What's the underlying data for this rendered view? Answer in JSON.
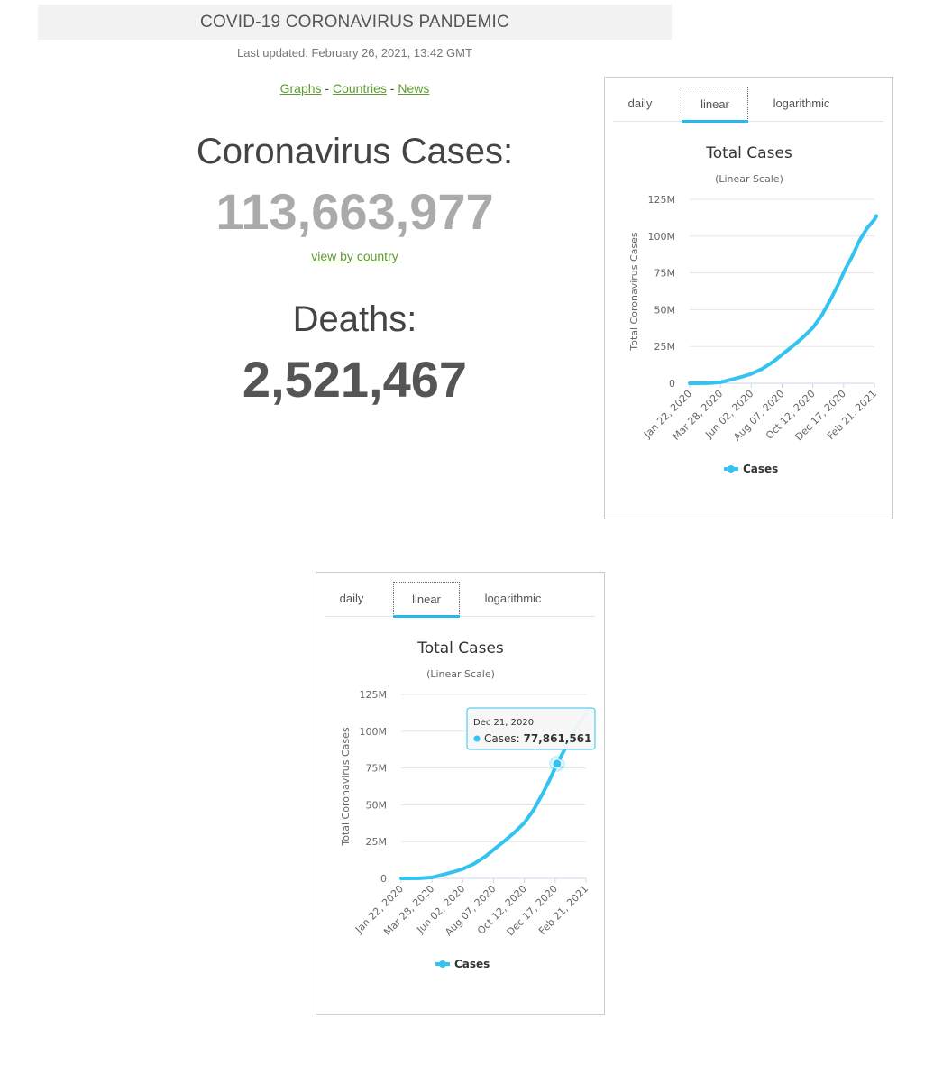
{
  "header": {
    "title": "COVID-19 CORONAVIRUS PANDEMIC",
    "last_updated": "Last updated: February 26, 2021, 13:42 GMT"
  },
  "nav": {
    "graphs": "Graphs",
    "sep1": " - ",
    "countries": "Countries",
    "sep2": " - ",
    "news": "News"
  },
  "stats": {
    "cases_label": "Coronavirus Cases:",
    "cases_value": "113,663,977",
    "view_link": "view by country",
    "deaths_label": "Deaths:",
    "deaths_value": "2,521,467"
  },
  "chart_tabs": {
    "daily": "daily",
    "linear": "linear",
    "logarithmic": "logarithmic"
  },
  "tooltip": {
    "date": "Dec 21, 2020",
    "series": "Cases",
    "value": "77,861,561"
  },
  "colors": {
    "series": "#33c3f0",
    "link": "#609b31"
  },
  "chart_data": {
    "type": "line",
    "title": "Total Cases",
    "subtitle": "(Linear Scale)",
    "ylabel": "Total Coronavirus Cases",
    "ylim": [
      0,
      125000000
    ],
    "yticks": [
      0,
      25000000,
      50000000,
      75000000,
      100000000,
      125000000
    ],
    "ytick_labels": [
      "0",
      "25M",
      "50M",
      "75M",
      "100M",
      "125M"
    ],
    "xtick_labels": [
      "Jan 22, 2020",
      "Mar 28, 2020",
      "Jun 02, 2020",
      "Aug 07, 2020",
      "Oct 12, 2020",
      "Dec 17, 2020",
      "Feb 21, 2021"
    ],
    "legend": "bottom-center",
    "grid": true,
    "series": [
      {
        "name": "Cases",
        "points": [
          [
            "Jan 22, 2020",
            0
          ],
          [
            "Mar 01, 2020",
            90000
          ],
          [
            "Mar 28, 2020",
            660000
          ],
          [
            "Apr 20, 2020",
            2500000
          ],
          [
            "May 15, 2020",
            4600000
          ],
          [
            "Jun 02, 2020",
            6400000
          ],
          [
            "Jun 25, 2020",
            9700000
          ],
          [
            "Jul 20, 2020",
            14800000
          ],
          [
            "Aug 07, 2020",
            19500000
          ],
          [
            "Aug 30, 2020",
            25300000
          ],
          [
            "Sep 20, 2020",
            31000000
          ],
          [
            "Oct 12, 2020",
            37800000
          ],
          [
            "Nov 01, 2020",
            46600000
          ],
          [
            "Nov 20, 2020",
            57600000
          ],
          [
            "Dec 05, 2020",
            66900000
          ],
          [
            "Dec 21, 2020",
            77861561
          ],
          [
            "Jan 05, 2021",
            86800000
          ],
          [
            "Jan 20, 2021",
            97000000
          ],
          [
            "Feb 05, 2021",
            105300000
          ],
          [
            "Feb 21, 2021",
            111300000
          ],
          [
            "Feb 25, 2021",
            113663977
          ]
        ]
      }
    ]
  }
}
